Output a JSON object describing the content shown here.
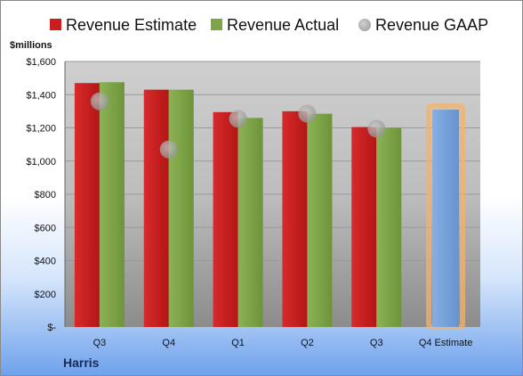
{
  "chart_data": {
    "type": "bar",
    "company": "Harris",
    "ylabel": "$millions",
    "ylim": [
      0,
      1600
    ],
    "yticks": [
      0,
      200,
      400,
      600,
      800,
      1000,
      1200,
      1400,
      1600
    ],
    "ytick_labels": [
      "$-",
      "$200",
      "$400",
      "$600",
      "$800",
      "$1,000",
      "$1,200",
      "$1,400",
      "$1,600"
    ],
    "categories": [
      "Q3",
      "Q4",
      "Q1",
      "Q2",
      "Q3",
      "Q4 Estimate"
    ],
    "grid": true,
    "legend_position": "top",
    "series": [
      {
        "name": "Revenue Estimate",
        "type": "bar",
        "color": "#c81e1e",
        "values": [
          1470,
          1430,
          1295,
          1300,
          1205,
          null
        ]
      },
      {
        "name": "Revenue Actual",
        "type": "bar",
        "color": "#7fa447",
        "values": [
          1475,
          1430,
          1260,
          1285,
          1200,
          null
        ]
      },
      {
        "name": "Revenue GAAP",
        "type": "marker",
        "color": "#9a9a9a",
        "values": [
          1360,
          1070,
          1255,
          1285,
          1195,
          null
        ]
      },
      {
        "name": "Q4 Estimate",
        "type": "bar",
        "color": "#7aa3db",
        "highlight": "#f4b36a",
        "values": [
          null,
          null,
          null,
          null,
          null,
          1310
        ]
      }
    ]
  }
}
